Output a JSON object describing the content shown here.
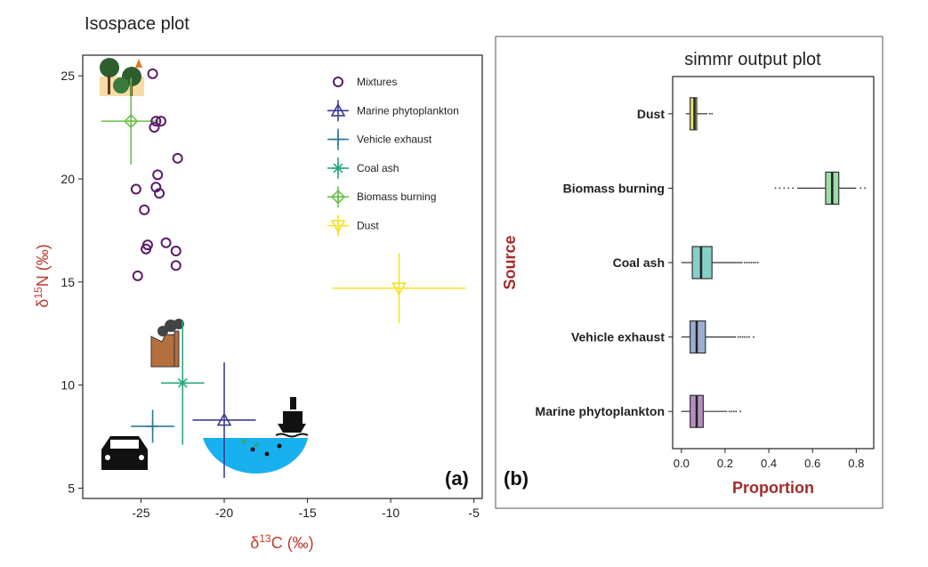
{
  "panel_a": {
    "title": "Isospace plot",
    "panel_label": "(a)",
    "xlabel_prefix": "δ",
    "xlabel_sup": "13",
    "xlabel_rest": "C (‰)",
    "ylabel_prefix": "δ",
    "ylabel_sup": "15",
    "ylabel_rest": "N (‰)",
    "axis_color": "#c0392b"
  },
  "panel_b": {
    "title": "simmr output plot",
    "panel_label": "(b)",
    "xlabel": "Proportion",
    "ylabel": "Source",
    "axis_label_color": "#a52a2a"
  },
  "chart_data": [
    {
      "type": "scatter",
      "title": "Isospace plot",
      "xlabel": "δ13C (‰)",
      "ylabel": "δ15N (‰)",
      "xlim": [
        -28.5,
        -4.5
      ],
      "ylim": [
        4.5,
        26
      ],
      "xticks": [
        -25,
        -20,
        -15,
        -10,
        -5
      ],
      "yticks": [
        5,
        10,
        15,
        20,
        25
      ],
      "grid": false,
      "legend_position": "top-right",
      "mixtures": {
        "name": "Mixtures",
        "color": "#5b1a6b",
        "points": [
          [
            -24.3,
            25.1
          ],
          [
            -24.1,
            22.8
          ],
          [
            -23.8,
            22.8
          ],
          [
            -24.2,
            22.5
          ],
          [
            -22.8,
            21.0
          ],
          [
            -24.0,
            20.2
          ],
          [
            -24.1,
            19.6
          ],
          [
            -25.3,
            19.5
          ],
          [
            -23.9,
            19.3
          ],
          [
            -24.8,
            18.5
          ],
          [
            -23.5,
            16.9
          ],
          [
            -24.6,
            16.8
          ],
          [
            -24.7,
            16.6
          ],
          [
            -22.9,
            16.5
          ],
          [
            -22.9,
            15.8
          ],
          [
            -25.2,
            15.3
          ]
        ]
      },
      "sources": [
        {
          "name": "Marine phytoplankton",
          "marker": "triangle-up",
          "color": "#3d3f8f",
          "x": -20.0,
          "y": 8.3,
          "x_sd": 1.9,
          "y_sd": 2.8
        },
        {
          "name": "Vehicle exhaust",
          "marker": "plus",
          "color": "#2d7a9a",
          "x": -24.3,
          "y": 8.0,
          "x_sd": 1.3,
          "y_sd": 0.8
        },
        {
          "name": "Coal ash",
          "marker": "asterisk",
          "color": "#2aa87a",
          "x": -22.5,
          "y": 10.1,
          "x_sd": 1.3,
          "y_sd": 3.0
        },
        {
          "name": "Biomass burning",
          "marker": "diamond-plus",
          "color": "#6cc04a",
          "x": -25.6,
          "y": 22.8,
          "x_sd": 1.8,
          "y_sd": 2.1
        },
        {
          "name": "Dust",
          "marker": "triangle-down",
          "color": "#f2e324",
          "x": -9.5,
          "y": 14.7,
          "x_sd": 4.0,
          "y_sd": 1.7
        }
      ]
    },
    {
      "type": "box",
      "title": "simmr output plot",
      "xlabel": "Proportion",
      "ylabel": "Source",
      "xlim": [
        -0.04,
        0.88
      ],
      "xticks": [
        0.0,
        0.2,
        0.4,
        0.6,
        0.8
      ],
      "tick_labels": [
        "0.0",
        "0.2",
        "0.4",
        "0.6",
        "0.8"
      ],
      "categories": [
        "Dust",
        "Biomass burning",
        "Coal ash",
        "Vehicle exhaust",
        "Marine phytoplankton"
      ],
      "boxes": [
        {
          "name": "Dust",
          "color": "#e8e07a",
          "min": 0.02,
          "q1": 0.04,
          "median": 0.06,
          "q3": 0.07,
          "max": 0.12,
          "outliers": [
            0.13,
            0.14
          ]
        },
        {
          "name": "Biomass burning",
          "color": "#9fdca8",
          "min": 0.53,
          "q1": 0.66,
          "median": 0.69,
          "q3": 0.72,
          "max": 0.8,
          "outliers": [
            0.43,
            0.45,
            0.47,
            0.49,
            0.51,
            0.82,
            0.84
          ]
        },
        {
          "name": "Coal ash",
          "color": "#86cfc9",
          "min": 0.0,
          "q1": 0.05,
          "median": 0.09,
          "q3": 0.14,
          "max": 0.28,
          "outliers": [
            0.29,
            0.3,
            0.31,
            0.32,
            0.33,
            0.34,
            0.35
          ]
        },
        {
          "name": "Vehicle exhaust",
          "color": "#9aaed2",
          "min": 0.0,
          "q1": 0.04,
          "median": 0.07,
          "q3": 0.11,
          "max": 0.25,
          "outliers": [
            0.26,
            0.27,
            0.28,
            0.29,
            0.3,
            0.31,
            0.33
          ]
        },
        {
          "name": "Marine phytoplankton",
          "color": "#b48fbf",
          "min": 0.0,
          "q1": 0.04,
          "median": 0.07,
          "q3": 0.1,
          "max": 0.21,
          "outliers": [
            0.22,
            0.23,
            0.24,
            0.25,
            0.27
          ]
        }
      ]
    }
  ]
}
